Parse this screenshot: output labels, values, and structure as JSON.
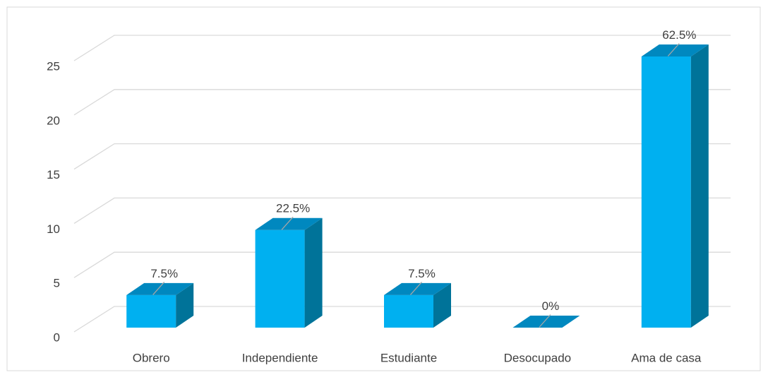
{
  "chart_data": {
    "type": "bar3d",
    "categories": [
      "Obrero",
      "Independiente",
      "Estudiante",
      "Desocupado",
      "Ama de casa"
    ],
    "values": [
      3,
      9,
      3,
      0,
      25
    ],
    "value_labels": [
      "7.5%",
      "22.5%",
      "7.5%",
      "0%",
      "62.5%"
    ],
    "color": "#00b0f0",
    "ylim": [
      0,
      25
    ],
    "yticks": [
      0,
      5,
      10,
      15,
      20,
      25
    ],
    "grid": true
  }
}
